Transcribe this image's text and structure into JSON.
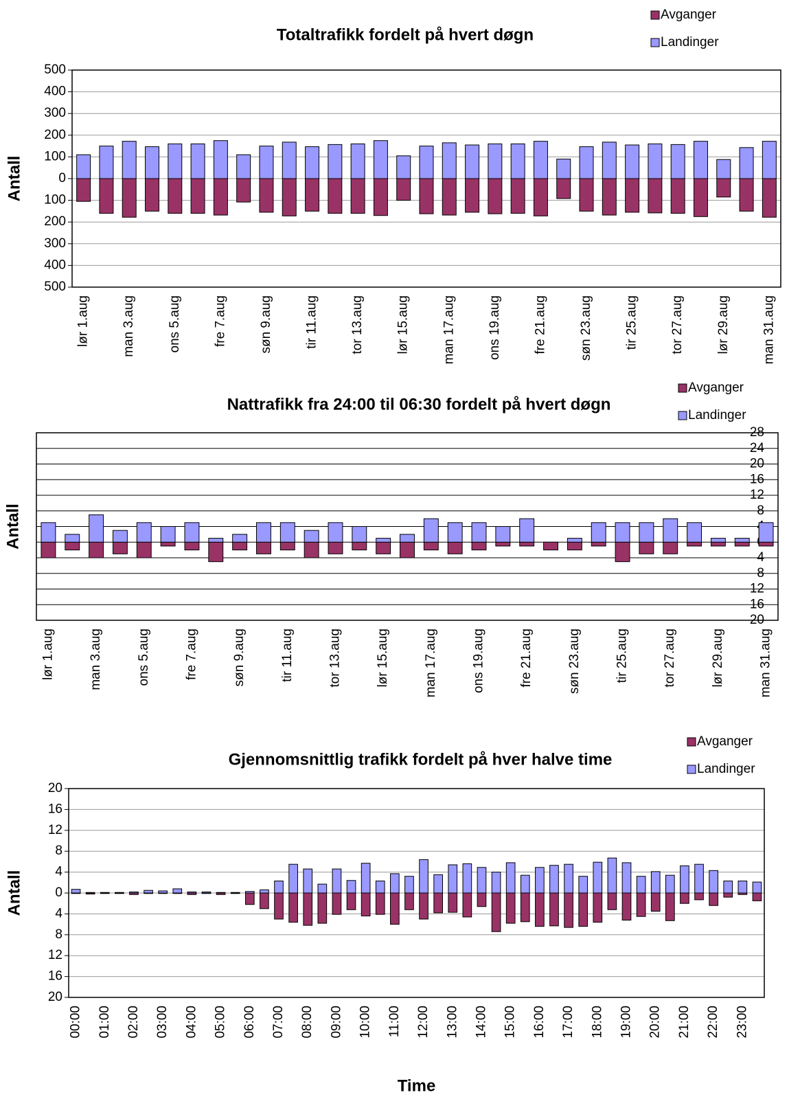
{
  "chart_data": [
    {
      "type": "bar",
      "title": "Totaltrafikk fordelt på hvert døgn",
      "y_label": "Antall",
      "legend": "top-right",
      "grid": true,
      "categories": [
        "lør 1.aug",
        null,
        "man 3.aug",
        null,
        "ons 5.aug",
        null,
        "fre 7.aug",
        null,
        "søn 9.aug",
        null,
        "tir 11.aug",
        null,
        "tor 13.aug",
        null,
        "lør 15.aug",
        null,
        "man 17.aug",
        null,
        "ons 19.aug",
        null,
        "fre 21.aug",
        null,
        "søn 23.aug",
        null,
        "tir 25.aug",
        null,
        "tor 27.aug",
        null,
        "lør 29.aug",
        null,
        "man 31.aug"
      ],
      "series": [
        {
          "name": "Avganger",
          "color": "#993366",
          "values": [
            -105,
            -160,
            -178,
            -150,
            -160,
            -160,
            -168,
            -108,
            -155,
            -172,
            -150,
            -160,
            -160,
            -170,
            -100,
            -162,
            -168,
            -155,
            -162,
            -160,
            -172,
            -92,
            -150,
            -168,
            -155,
            -158,
            -160,
            -175,
            -85,
            -150,
            -178
          ]
        },
        {
          "name": "Landinger",
          "color": "#9999ff",
          "values": [
            110,
            150,
            172,
            147,
            160,
            160,
            175,
            110,
            150,
            168,
            147,
            157,
            160,
            175,
            105,
            150,
            165,
            155,
            160,
            160,
            172,
            90,
            147,
            168,
            155,
            160,
            157,
            172,
            88,
            143,
            172
          ]
        }
      ],
      "ylim": [
        -500,
        500
      ],
      "yticks": [
        500,
        400,
        300,
        200,
        100,
        0,
        {
          "value": -100,
          "label": "100"
        },
        {
          "value": -200,
          "label": "200"
        },
        {
          "value": -300,
          "label": "300"
        },
        {
          "value": -400,
          "label": "400"
        },
        {
          "value": -500,
          "label": "500"
        }
      ]
    },
    {
      "type": "bar",
      "title": "Nattrafikk fra 24:00 til 06:30 fordelt på hvert døgn",
      "y_label": "Antall",
      "legend": "top-right",
      "grid": true,
      "categories": [
        "lør 1.aug",
        null,
        "man 3.aug",
        null,
        "ons 5.aug",
        null,
        "fre 7.aug",
        null,
        "søn 9.aug",
        null,
        "tir 11.aug",
        null,
        "tor 13.aug",
        null,
        "lør 15.aug",
        null,
        "man 17.aug",
        null,
        "ons 19.aug",
        null,
        "fre 21.aug",
        null,
        "søn 23.aug",
        null,
        "tir 25.aug",
        null,
        "tor 27.aug",
        null,
        "lør 29.aug",
        null,
        "man 31.aug"
      ],
      "series": [
        {
          "name": "Avganger",
          "color": "#993366",
          "values": [
            -4,
            -2,
            -4,
            -3,
            -4,
            -1,
            -2,
            -5,
            -2,
            -3,
            -2,
            -4,
            -3,
            -2,
            -3,
            -4,
            -2,
            -3,
            -2,
            -1,
            -1,
            -2,
            -2,
            -1,
            -5,
            -3,
            -3,
            -1,
            -1,
            -1,
            -1
          ]
        },
        {
          "name": "Landinger",
          "color": "#9999ff",
          "values": [
            5,
            2,
            7,
            3,
            5,
            4,
            5,
            1,
            2,
            5,
            5,
            3,
            5,
            4,
            1,
            2,
            6,
            5,
            5,
            4,
            6,
            0,
            1,
            5,
            5,
            5,
            6,
            5,
            1,
            1,
            5
          ]
        }
      ],
      "ylim": [
        -20,
        28
      ],
      "yticks": [
        28,
        24,
        20,
        16,
        12,
        8,
        4,
        0,
        {
          "value": -4,
          "label": "4"
        },
        {
          "value": -8,
          "label": "8"
        },
        {
          "value": -12,
          "label": "12"
        },
        {
          "value": -16,
          "label": "16"
        },
        {
          "value": -20,
          "label": "20"
        }
      ]
    },
    {
      "type": "bar",
      "title": "Gjennomsnittlig trafikk fordelt på hver halve time",
      "y_label": "Antall",
      "x_label": "Time",
      "legend": "top-right",
      "grid": true,
      "categories": [
        "00:00",
        null,
        "01:00",
        null,
        "02:00",
        null,
        "03:00",
        null,
        "04:00",
        null,
        "05:00",
        null,
        "06:00",
        null,
        "07:00",
        null,
        "08:00",
        null,
        "09:00",
        null,
        "10:00",
        null,
        "11:00",
        null,
        "12:00",
        null,
        "13:00",
        null,
        "14:00",
        null,
        "15:00",
        null,
        "16:00",
        null,
        "17:00",
        null,
        "18:00",
        null,
        "19:00",
        null,
        "20:00",
        null,
        "21:00",
        null,
        "22:00",
        null,
        "23:00",
        null
      ],
      "series": [
        {
          "name": "Avganger",
          "color": "#993366",
          "values": [
            -0.1,
            -0.2,
            -0.1,
            -0.1,
            -0.3,
            -0.1,
            -0.1,
            -0.1,
            -0.3,
            -0.1,
            -0.3,
            -0.1,
            -2.2,
            -3.0,
            -5.0,
            -5.6,
            -6.2,
            -5.8,
            -4.1,
            -3.2,
            -4.4,
            -4.1,
            -6.0,
            -3.2,
            -5.0,
            -3.8,
            -3.7,
            -4.6,
            -2.6,
            -7.4,
            -5.8,
            -5.5,
            -6.4,
            -6.3,
            -6.6,
            -6.4,
            -5.6,
            -3.2,
            -5.2,
            -4.5,
            -3.5,
            -5.3,
            -2.0,
            -1.3,
            -2.4,
            -0.8,
            -0.3,
            -1.5
          ]
        },
        {
          "name": "Landinger",
          "color": "#9999ff",
          "values": [
            0.7,
            0.1,
            0.1,
            0.1,
            0.2,
            0.5,
            0.4,
            0.8,
            0.2,
            0.2,
            0.1,
            0.1,
            0.3,
            0.6,
            2.3,
            5.5,
            4.6,
            1.7,
            4.6,
            2.4,
            5.7,
            2.3,
            3.7,
            3.2,
            6.4,
            3.5,
            5.4,
            5.6,
            4.9,
            4.0,
            5.8,
            3.4,
            4.9,
            5.3,
            5.5,
            3.2,
            5.9,
            6.7,
            5.8,
            3.2,
            4.1,
            3.4,
            5.2,
            5.5,
            4.3,
            2.3,
            2.3,
            2.1
          ]
        }
      ],
      "ylim": [
        -20,
        20
      ],
      "yticks": [
        20,
        16,
        12,
        8,
        4,
        0,
        {
          "value": -4,
          "label": "4"
        },
        {
          "value": -8,
          "label": "8"
        },
        {
          "value": -12,
          "label": "12"
        },
        {
          "value": -16,
          "label": "16"
        },
        {
          "value": -20,
          "label": "20"
        }
      ]
    }
  ]
}
